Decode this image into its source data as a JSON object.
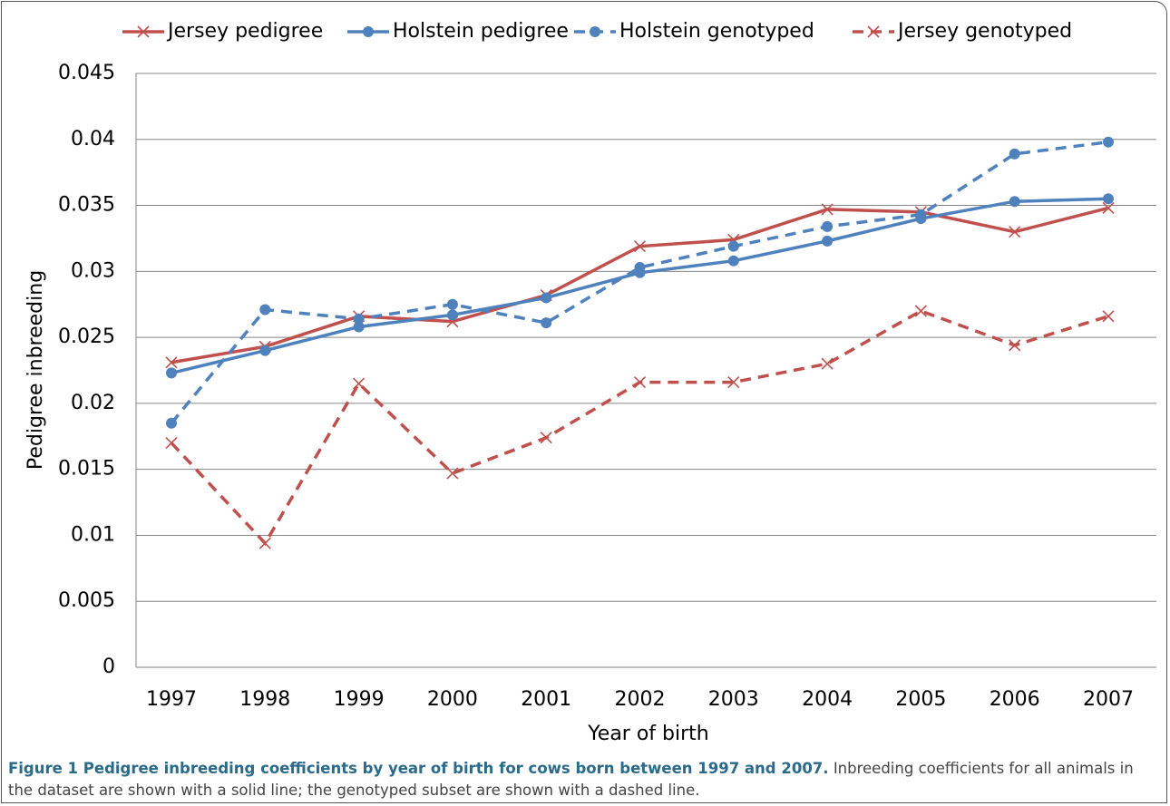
{
  "chart_data": {
    "type": "line",
    "categories": [
      "1997",
      "1998",
      "1999",
      "2000",
      "2001",
      "2002",
      "2003",
      "2004",
      "2005",
      "2006",
      "2007"
    ],
    "x_label": "Year of birth",
    "y_label": "Pedigree inbreeding",
    "ylim": [
      0,
      0.045
    ],
    "yticks": [
      0,
      0.005,
      0.01,
      0.015,
      0.02,
      0.025,
      0.03,
      0.035,
      0.04,
      0.045
    ],
    "grid": true,
    "legend": "top",
    "series": [
      {
        "name": "Jersey pedigree",
        "color": "#c0504d",
        "line_style": "solid",
        "marker": "x",
        "values": [
          0.0231,
          0.0243,
          0.0266,
          0.0262,
          0.0282,
          0.0319,
          0.0324,
          0.0347,
          0.0345,
          0.033,
          0.0348
        ]
      },
      {
        "name": "Holstein pedigree",
        "color": "#4f81bd",
        "line_style": "solid",
        "marker": "circle",
        "values": [
          0.0223,
          0.024,
          0.0258,
          0.0267,
          0.028,
          0.0299,
          0.0308,
          0.0323,
          0.034,
          0.0353,
          0.0355
        ]
      },
      {
        "name": "Holstein genotyped",
        "color": "#4f81bd",
        "line_style": "dashed",
        "marker": "circle",
        "values": [
          0.0185,
          0.0271,
          0.0264,
          0.0275,
          0.0261,
          0.0303,
          0.0319,
          0.0334,
          0.0343,
          0.0389,
          0.0398
        ]
      },
      {
        "name": "Jersey genotyped",
        "color": "#c0504d",
        "line_style": "dashed",
        "marker": "x",
        "values": [
          0.017,
          0.0094,
          0.0215,
          0.0147,
          0.0174,
          0.0216,
          0.0216,
          0.023,
          0.027,
          0.0244,
          0.0266
        ]
      }
    ]
  },
  "figure_caption": {
    "title": "Figure 1 Pedigree inbreeding coefficients by year of birth for cows born between 1997 and 2007.",
    "text": "Inbreeding coefficients for all animals in the dataset are shown with a solid line; the genotyped subset are shown with a dashed line."
  }
}
